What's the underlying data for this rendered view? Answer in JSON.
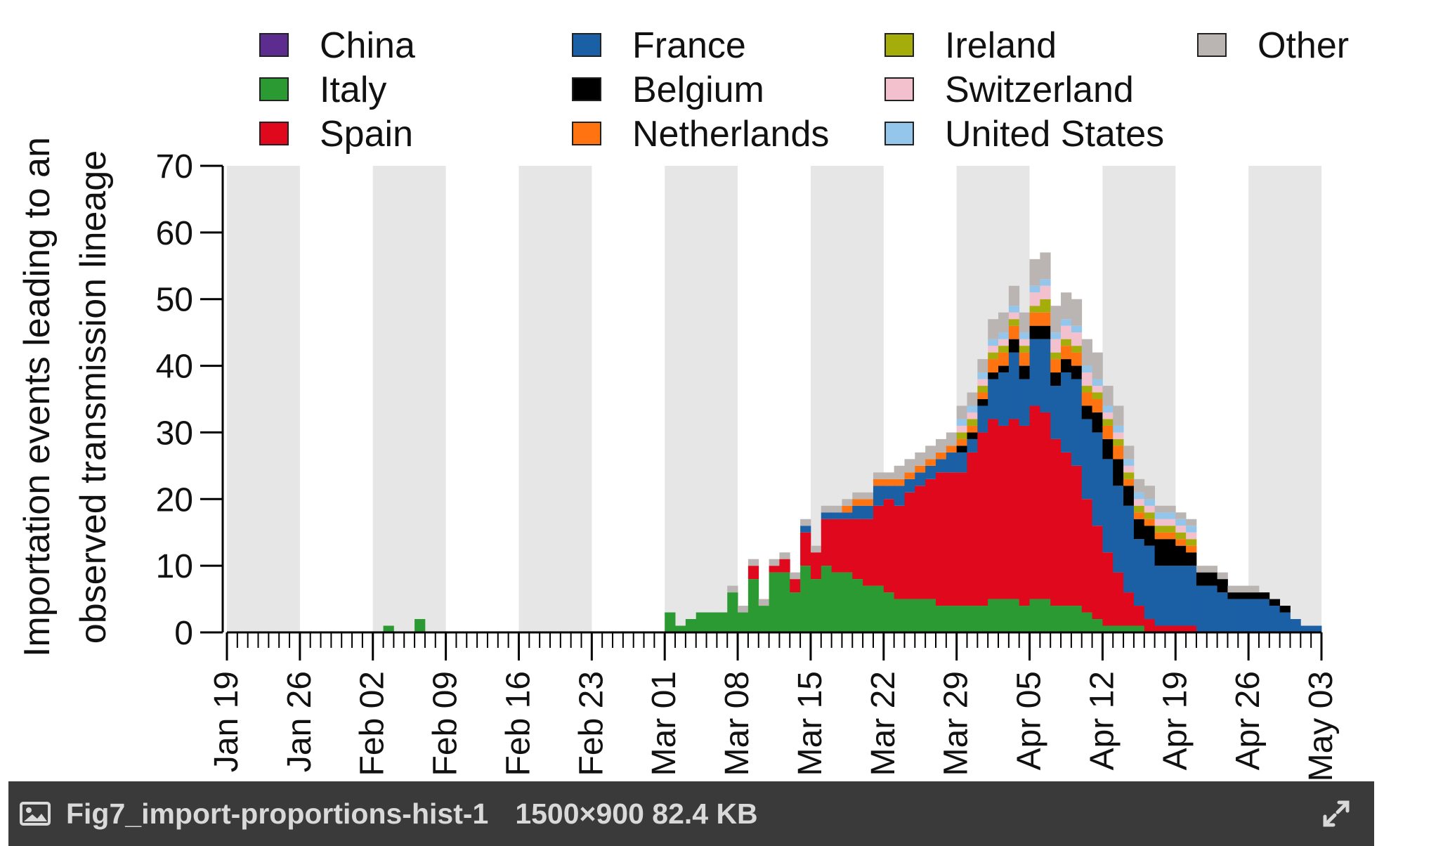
{
  "caption": {
    "file_name": "Fig7_import-proportions-hist-1",
    "file_info": "1500×900 82.4 KB",
    "icons": [
      "image-icon",
      "expand-icon"
    ]
  },
  "chart_data": {
    "type": "bar",
    "stacked": true,
    "title": "",
    "ylabel_line1": "Importation events leading to an",
    "ylabel_line2": "observed transmission lineage",
    "xlabel": "",
    "ylim": [
      0,
      70
    ],
    "yticks": [
      "0",
      "10",
      "20",
      "30",
      "40",
      "50",
      "60",
      "70"
    ],
    "xticks": [
      "Jan 19",
      "Jan 26",
      "Feb 02",
      "Feb 09",
      "Feb 16",
      "Feb 23",
      "Mar 01",
      "Mar 08",
      "Mar 15",
      "Mar 22",
      "Mar 29",
      "Apr 05",
      "Apr 12",
      "Apr 19",
      "Apr 26",
      "May 03"
    ],
    "x_start": "Jan 19",
    "bin": "1 day",
    "n_days": 105,
    "shaded_alternate_weeks": true,
    "legend_position": "top",
    "legend_rows": 3,
    "colors": {
      "China": "#5c2d8f",
      "Italy": "#2b9a32",
      "Spain": "#e0081c",
      "France": "#1b5fa5",
      "Belgium": "#000000",
      "Netherlands": "#ff7311",
      "Ireland": "#a5ad0b",
      "Switzerland": "#f2c1cd",
      "United States": "#93c6ea",
      "Other": "#bab5b2"
    },
    "series": [
      {
        "name": "China",
        "values": [
          0,
          0,
          0,
          0,
          0,
          0,
          0,
          0,
          0,
          0,
          0,
          0,
          0,
          0,
          0,
          0,
          0,
          0,
          0,
          0,
          0,
          0,
          0,
          0,
          0,
          0,
          0,
          0,
          0,
          0,
          0,
          0,
          0,
          0,
          0,
          0,
          0,
          0,
          0,
          0,
          0,
          0,
          0,
          0,
          0,
          0,
          0,
          0,
          0,
          0,
          0,
          0,
          0,
          0,
          0,
          0,
          0,
          0,
          0,
          0,
          0,
          0,
          0,
          0,
          0,
          0,
          0,
          0,
          0,
          0,
          0,
          0,
          0,
          0,
          0,
          0,
          0,
          0,
          0,
          0,
          0,
          0,
          0,
          0,
          0,
          0,
          0,
          0,
          0,
          0,
          0,
          0,
          0,
          0,
          0,
          0,
          0,
          0,
          0,
          0,
          0,
          0,
          0,
          0,
          0
        ]
      },
      {
        "name": "Italy",
        "values": [
          0,
          0,
          0,
          0,
          0,
          0,
          0,
          0,
          0,
          0,
          0,
          0,
          0,
          0,
          0,
          1,
          0,
          0,
          2,
          0,
          0,
          0,
          0,
          0,
          0,
          0,
          0,
          0,
          0,
          0,
          0,
          0,
          0,
          0,
          0,
          0,
          0,
          0,
          0,
          0,
          0,
          0,
          3,
          1,
          2,
          3,
          3,
          3,
          6,
          3,
          8,
          4,
          9,
          9,
          6,
          10,
          8,
          10,
          9,
          9,
          8,
          7,
          7,
          6,
          5,
          5,
          5,
          5,
          4,
          4,
          4,
          4,
          4,
          5,
          5,
          5,
          4,
          5,
          5,
          4,
          4,
          4,
          3,
          2,
          1,
          1,
          1,
          1,
          0,
          0,
          0,
          0,
          0,
          0,
          0,
          0,
          0,
          0,
          0,
          0,
          0,
          0,
          0,
          0,
          0
        ]
      },
      {
        "name": "Spain",
        "values": [
          0,
          0,
          0,
          0,
          0,
          0,
          0,
          0,
          0,
          0,
          0,
          0,
          0,
          0,
          0,
          0,
          0,
          0,
          0,
          0,
          0,
          0,
          0,
          0,
          0,
          0,
          0,
          0,
          0,
          0,
          0,
          0,
          0,
          0,
          0,
          0,
          0,
          0,
          0,
          0,
          0,
          0,
          0,
          0,
          0,
          0,
          0,
          0,
          0,
          0,
          2,
          0,
          1,
          2,
          2,
          5,
          4,
          7,
          8,
          8,
          9,
          10,
          12,
          14,
          14,
          16,
          17,
          18,
          20,
          20,
          20,
          23,
          26,
          27,
          26,
          27,
          27,
          29,
          28,
          25,
          23,
          21,
          17,
          14,
          11,
          8,
          5,
          3,
          2,
          1,
          1,
          1,
          1,
          0,
          0,
          0,
          0,
          0,
          0,
          0,
          0,
          0,
          0,
          0,
          0
        ]
      },
      {
        "name": "France",
        "values": [
          0,
          0,
          0,
          0,
          0,
          0,
          0,
          0,
          0,
          0,
          0,
          0,
          0,
          0,
          0,
          0,
          0,
          0,
          0,
          0,
          0,
          0,
          0,
          0,
          0,
          0,
          0,
          0,
          0,
          0,
          0,
          0,
          0,
          0,
          0,
          0,
          0,
          0,
          0,
          0,
          0,
          0,
          0,
          0,
          0,
          0,
          0,
          0,
          0,
          0,
          0,
          0,
          0,
          0,
          0,
          1,
          0,
          1,
          1,
          1,
          2,
          2,
          3,
          2,
          3,
          2,
          2,
          2,
          2,
          3,
          3,
          2,
          4,
          6,
          8,
          10,
          7,
          10,
          11,
          8,
          12,
          13,
          12,
          14,
          14,
          13,
          13,
          10,
          11,
          9,
          9,
          9,
          9,
          7,
          7,
          6,
          5,
          5,
          5,
          5,
          4,
          3,
          2,
          1,
          1
        ]
      },
      {
        "name": "Belgium",
        "values": [
          0,
          0,
          0,
          0,
          0,
          0,
          0,
          0,
          0,
          0,
          0,
          0,
          0,
          0,
          0,
          0,
          0,
          0,
          0,
          0,
          0,
          0,
          0,
          0,
          0,
          0,
          0,
          0,
          0,
          0,
          0,
          0,
          0,
          0,
          0,
          0,
          0,
          0,
          0,
          0,
          0,
          0,
          0,
          0,
          0,
          0,
          0,
          0,
          0,
          0,
          0,
          0,
          0,
          0,
          0,
          0,
          0,
          0,
          0,
          0,
          0,
          0,
          0,
          0,
          0,
          0,
          0,
          0,
          0,
          0,
          1,
          1,
          1,
          1,
          1,
          2,
          2,
          2,
          2,
          2,
          2,
          2,
          2,
          3,
          3,
          4,
          3,
          3,
          3,
          4,
          4,
          3,
          2,
          2,
          2,
          2,
          1,
          1,
          1,
          1,
          1,
          1,
          0,
          0,
          0
        ]
      },
      {
        "name": "Netherlands",
        "values": [
          0,
          0,
          0,
          0,
          0,
          0,
          0,
          0,
          0,
          0,
          0,
          0,
          0,
          0,
          0,
          0,
          0,
          0,
          0,
          0,
          0,
          0,
          0,
          0,
          0,
          0,
          0,
          0,
          0,
          0,
          0,
          0,
          0,
          0,
          0,
          0,
          0,
          0,
          0,
          0,
          0,
          0,
          0,
          0,
          0,
          0,
          0,
          0,
          0,
          0,
          0,
          0,
          0,
          0,
          0,
          0,
          0,
          0,
          0,
          1,
          1,
          1,
          1,
          1,
          1,
          1,
          1,
          1,
          1,
          1,
          1,
          1,
          1,
          2,
          2,
          2,
          2,
          2,
          2,
          2,
          2,
          2,
          2,
          2,
          2,
          2,
          1,
          1,
          1,
          1,
          1,
          1,
          1,
          0,
          0,
          0,
          0,
          0,
          0,
          0,
          0,
          0,
          0,
          0,
          0
        ]
      },
      {
        "name": "Ireland",
        "values": [
          0,
          0,
          0,
          0,
          0,
          0,
          0,
          0,
          0,
          0,
          0,
          0,
          0,
          0,
          0,
          0,
          0,
          0,
          0,
          0,
          0,
          0,
          0,
          0,
          0,
          0,
          0,
          0,
          0,
          0,
          0,
          0,
          0,
          0,
          0,
          0,
          0,
          0,
          0,
          0,
          0,
          0,
          0,
          0,
          0,
          0,
          0,
          0,
          0,
          0,
          0,
          0,
          0,
          0,
          0,
          0,
          0,
          0,
          0,
          0,
          0,
          0,
          0,
          0,
          0,
          0,
          0,
          0,
          0,
          0,
          1,
          1,
          1,
          1,
          1,
          1,
          1,
          1,
          2,
          1,
          1,
          1,
          1,
          1,
          1,
          1,
          1,
          1,
          1,
          1,
          1,
          1,
          1,
          0,
          0,
          0,
          0,
          0,
          0,
          0,
          0,
          0,
          0,
          0,
          0
        ]
      },
      {
        "name": "Switzerland",
        "values": [
          0,
          0,
          0,
          0,
          0,
          0,
          0,
          0,
          0,
          0,
          0,
          0,
          0,
          0,
          0,
          0,
          0,
          0,
          0,
          0,
          0,
          0,
          0,
          0,
          0,
          0,
          0,
          0,
          0,
          0,
          0,
          0,
          0,
          0,
          0,
          0,
          0,
          0,
          0,
          0,
          0,
          0,
          0,
          0,
          0,
          0,
          0,
          0,
          0,
          0,
          0,
          0,
          0,
          0,
          0,
          0,
          0,
          0,
          0,
          0,
          0,
          0,
          0,
          0,
          0,
          0,
          0,
          0,
          0,
          0,
          1,
          1,
          1,
          1,
          1,
          1,
          1,
          2,
          2,
          2,
          2,
          2,
          2,
          1,
          1,
          1,
          1,
          1,
          1,
          1,
          1,
          1,
          1,
          0,
          0,
          0,
          0,
          0,
          0,
          0,
          0,
          0,
          0,
          0,
          0
        ]
      },
      {
        "name": "United States",
        "values": [
          0,
          0,
          0,
          0,
          0,
          0,
          0,
          0,
          0,
          0,
          0,
          0,
          0,
          0,
          0,
          0,
          0,
          0,
          0,
          0,
          0,
          0,
          0,
          0,
          0,
          0,
          0,
          0,
          0,
          0,
          0,
          0,
          0,
          0,
          0,
          0,
          0,
          0,
          0,
          0,
          0,
          0,
          0,
          0,
          0,
          0,
          0,
          0,
          0,
          0,
          0,
          0,
          0,
          0,
          0,
          0,
          0,
          0,
          0,
          0,
          0,
          0,
          0,
          0,
          0,
          0,
          0,
          0,
          0,
          0,
          1,
          1,
          1,
          1,
          1,
          1,
          1,
          1,
          1,
          1,
          1,
          1,
          1,
          1,
          1,
          1,
          1,
          1,
          1,
          1,
          1,
          1,
          1,
          0,
          0,
          0,
          0,
          0,
          0,
          0,
          0,
          0,
          0,
          0,
          0
        ]
      },
      {
        "name": "Other",
        "values": [
          0,
          0,
          0,
          0,
          0,
          0,
          0,
          0,
          0,
          0,
          0,
          0,
          0,
          0,
          0,
          0,
          0,
          0,
          0,
          0,
          0,
          0,
          0,
          0,
          0,
          0,
          0,
          0,
          0,
          0,
          0,
          0,
          0,
          0,
          0,
          0,
          0,
          0,
          0,
          0,
          0,
          0,
          0,
          0,
          0,
          0,
          0,
          0,
          1,
          1,
          1,
          1,
          1,
          1,
          1,
          1,
          1,
          1,
          1,
          1,
          1,
          1,
          1,
          1,
          2,
          2,
          2,
          2,
          2,
          2,
          2,
          2,
          2,
          3,
          3,
          3,
          3,
          4,
          4,
          4,
          4,
          4,
          4,
          4,
          3,
          3,
          2,
          2,
          2,
          1,
          1,
          1,
          1,
          1,
          1,
          1,
          1,
          1,
          1,
          0,
          0,
          0,
          0,
          0,
          0
        ]
      }
    ]
  }
}
